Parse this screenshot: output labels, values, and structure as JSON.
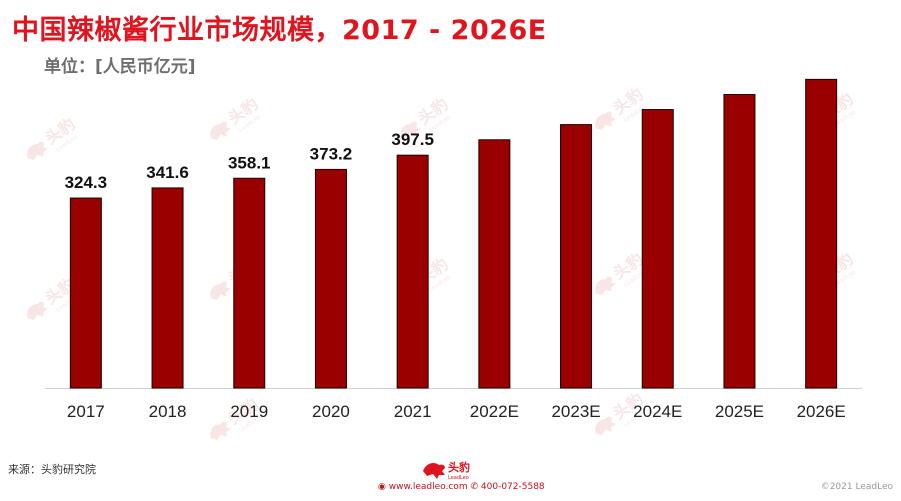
{
  "header": {
    "title": "中国辣椒酱行业市场规模，2017 - 2026E",
    "unit": "单位：[人民币亿元]"
  },
  "footer": {
    "source": "来源：头豹研究院",
    "logo_text": "头豹",
    "logo_subtext": "LeadLeo",
    "website": "www.leadleo.com",
    "phone": "400-072-5588",
    "copyright": "©2021 LeadLeo"
  },
  "watermark": {
    "text": "头豹",
    "subtext": "LeadLeo"
  },
  "colors": {
    "title": "#e0141e",
    "bar": "#9b0000",
    "bar_stroke": "#1a0000",
    "axis": "#d0d0d0"
  },
  "chart_data": {
    "type": "bar",
    "title": "中国辣椒酱行业市场规模，2017 - 2026E",
    "ylabel": "单位：[人民币亿元]",
    "categories": [
      "2017",
      "2018",
      "2019",
      "2020",
      "2021",
      "2022E",
      "2023E",
      "2024E",
      "2025E",
      "2026E"
    ],
    "values": [
      324.3,
      341.6,
      358.1,
      373.2,
      397.5,
      423.8,
      449.7,
      475.4,
      501.1,
      526.9
    ],
    "data_labels": [
      "324.3",
      "341.6",
      "358.1",
      "373.2",
      "397.5",
      "",
      "",
      "",
      "",
      ""
    ],
    "ylim": [
      0,
      560
    ],
    "grid": false,
    "legend": "none"
  }
}
